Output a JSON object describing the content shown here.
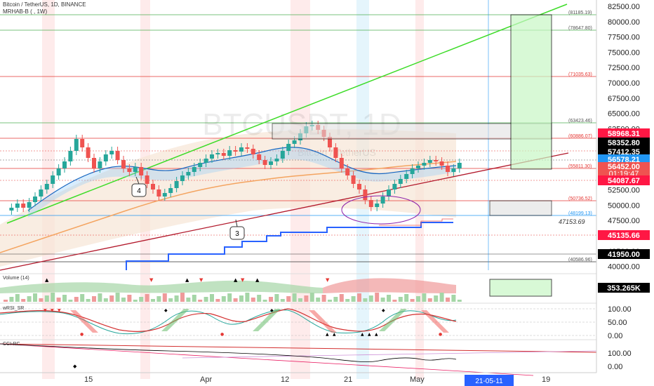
{
  "header": {
    "title": "Bitcoin / TetherUS, 1D, BINANCE",
    "indicator": "MRHAB-B ( , 1W)"
  },
  "watermark": {
    "symbol": "BTCUSDT, 1D",
    "description": "Bitcoin / TetherUS"
  },
  "price_axis": {
    "ticks": [
      "82500.00",
      "80000.00",
      "77500.00",
      "75000.00",
      "72500.00",
      "70000.00",
      "67500.00",
      "65000.00",
      "62500.00",
      "60000.00",
      "57500.00",
      "55000.00",
      "52500.00",
      "50000.00",
      "47500.00",
      "45000.00",
      "42500.00",
      "40000.00"
    ],
    "label_58968": "58968.31",
    "label_58352": "58352.80",
    "label_57412": "57412.35",
    "label_56578": "56578.21",
    "label_56452": "56452.00",
    "label_countdown": "01:19:47",
    "label_55000": "55000.00",
    "label_54087": "54087.67",
    "label_45135": "45135.66",
    "label_41950": "41950.00"
  },
  "level_labels": {
    "l81185": "(81185.19)",
    "l78647": "(78647.80)",
    "l71035": "(71035.63)",
    "l63423": "(63423.46)",
    "l60886": "(60886.07)",
    "l55811": "(55811.30)",
    "l50736": "(50736.52)",
    "l48199": "(48199.13)",
    "l47153": "47153.69",
    "l40586": "(40586.96)"
  },
  "annotations": {
    "wave4": "4",
    "wave3": "3"
  },
  "volume": {
    "title": "Volume (14)",
    "value": "353.265K",
    "zero": "0"
  },
  "wrsi": {
    "title": "wRSI_SR",
    "ticks": [
      "100.00",
      "50.00",
      "0.00"
    ]
  },
  "cci": {
    "title": "CCI-RC",
    "ticks": [
      "100.00",
      "0.00"
    ]
  },
  "time_axis": {
    "labels": [
      "15",
      "Apr",
      "12",
      "21",
      "May",
      "19"
    ],
    "current": "21-05-11"
  },
  "colors": {
    "up": "#26a69a",
    "down": "#ef5350",
    "green_line": "#3ddc28",
    "red_line": "#b2182b",
    "blue_step": "#2962ff",
    "label_red": "#ff1744",
    "label_black": "#000000",
    "label_blue": "#2196f3"
  }
}
